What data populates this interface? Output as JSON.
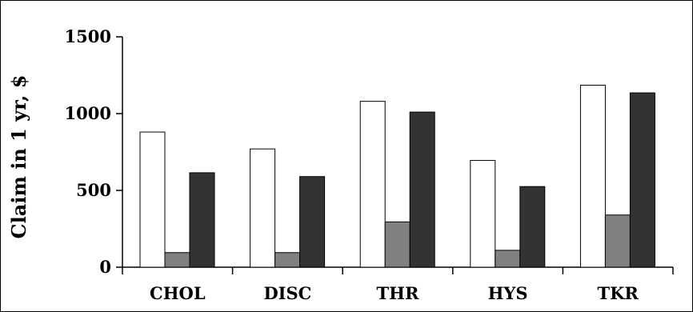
{
  "chart_data": {
    "type": "bar",
    "title": "",
    "xlabel": "",
    "ylabel": "Claim in 1 yr, $",
    "ylim": [
      0,
      1500
    ],
    "yticks": [
      0,
      500,
      1000,
      1500
    ],
    "grid": false,
    "legend": "none",
    "categories": [
      "CHOL",
      "DISC",
      "THR",
      "HYS",
      "TKR"
    ],
    "series": [
      {
        "values": [
          880,
          770,
          1080,
          695,
          1185
        ],
        "color": "#ffffff"
      },
      {
        "values": [
          95,
          95,
          295,
          110,
          340
        ],
        "color": "#808080"
      },
      {
        "values": [
          615,
          590,
          1010,
          525,
          1135
        ],
        "color": "#333333"
      }
    ]
  }
}
